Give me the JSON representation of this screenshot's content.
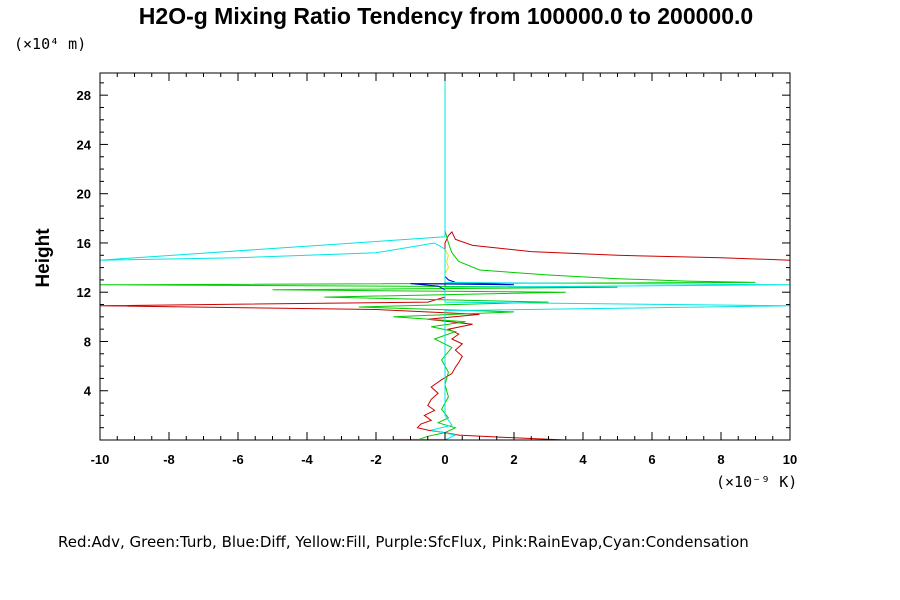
{
  "chart_data": {
    "type": "line",
    "title": "H2O-g Mixing Ratio Tendency from 100000.0 to 200000.0",
    "ylabel": "Height",
    "y_units": "(×10⁴ m)",
    "x_units": "(×10⁻⁹ K)",
    "xlim": [
      -10,
      10
    ],
    "ylim": [
      0,
      29.8
    ],
    "x_ticks": [
      "-10",
      "-8",
      "-6",
      "-4",
      "-2",
      "0",
      "2",
      "4",
      "6",
      "8",
      "10"
    ],
    "y_ticks": [
      "4",
      "8",
      "12",
      "16",
      "20",
      "24",
      "28"
    ],
    "legend_text": "Red:Adv, Green:Turb, Blue:Diff, Yellow:Fill, Purple:SfcFlux, Pink:RainEvap,Cyan:Condensation",
    "grid": false,
    "series": [
      {
        "name": "Adv",
        "color": "#cc0000",
        "points": [
          [
            3.5,
            0.0
          ],
          [
            1.8,
            0.2
          ],
          [
            0.4,
            0.4
          ],
          [
            0.0,
            0.6
          ],
          [
            -0.5,
            0.8
          ],
          [
            -0.8,
            1.0
          ],
          [
            -0.7,
            1.3
          ],
          [
            -0.4,
            1.6
          ],
          [
            -0.6,
            2.0
          ],
          [
            -0.3,
            2.4
          ],
          [
            -0.5,
            2.8
          ],
          [
            -0.4,
            3.3
          ],
          [
            -0.2,
            3.8
          ],
          [
            -0.4,
            4.3
          ],
          [
            -0.1,
            4.9
          ],
          [
            0.2,
            5.4
          ],
          [
            0.3,
            5.9
          ],
          [
            0.4,
            6.3
          ],
          [
            0.5,
            6.8
          ],
          [
            0.3,
            7.3
          ],
          [
            0.5,
            7.8
          ],
          [
            0.2,
            8.2
          ],
          [
            0.4,
            8.6
          ],
          [
            0.1,
            9.0
          ],
          [
            0.8,
            9.4
          ],
          [
            -0.5,
            9.8
          ],
          [
            1.0,
            10.2
          ],
          [
            -2.0,
            10.6
          ],
          [
            -10.0,
            10.9
          ],
          [
            -0.5,
            11.2
          ],
          [
            0.0,
            11.6
          ],
          [
            0.0,
            12.0
          ],
          [
            0.0,
            12.5
          ],
          [
            0.0,
            13.0
          ],
          [
            0.0,
            13.8
          ],
          [
            0.0,
            15.0
          ],
          [
            0.0,
            16.0
          ],
          [
            0.1,
            16.6
          ],
          [
            0.2,
            16.9
          ],
          [
            0.3,
            16.3
          ],
          [
            0.8,
            15.8
          ],
          [
            2.5,
            15.3
          ],
          [
            5.0,
            15.0
          ],
          [
            8.0,
            14.8
          ],
          [
            10.0,
            14.6
          ]
        ]
      },
      {
        "name": "Turb",
        "color": "#00cc00",
        "points": [
          [
            -0.8,
            0.0
          ],
          [
            -0.5,
            0.3
          ],
          [
            0.0,
            0.6
          ],
          [
            0.3,
            1.0
          ],
          [
            -0.2,
            1.4
          ],
          [
            0.1,
            1.8
          ],
          [
            -0.1,
            2.5
          ],
          [
            0.1,
            3.5
          ],
          [
            0.0,
            4.5
          ],
          [
            0.1,
            5.5
          ],
          [
            -0.1,
            6.5
          ],
          [
            0.2,
            7.5
          ],
          [
            -0.3,
            8.2
          ],
          [
            0.3,
            8.8
          ],
          [
            -0.4,
            9.2
          ],
          [
            0.6,
            9.6
          ],
          [
            -1.5,
            10.0
          ],
          [
            2.0,
            10.4
          ],
          [
            -2.5,
            10.8
          ],
          [
            3.0,
            11.2
          ],
          [
            -3.5,
            11.6
          ],
          [
            3.5,
            12.0
          ],
          [
            -5.0,
            12.2
          ],
          [
            5.0,
            12.4
          ],
          [
            -10.0,
            12.6
          ],
          [
            9.0,
            12.8
          ],
          [
            7.0,
            12.9
          ],
          [
            5.0,
            13.1
          ],
          [
            3.0,
            13.4
          ],
          [
            1.0,
            13.8
          ],
          [
            0.4,
            14.5
          ],
          [
            0.2,
            15.2
          ],
          [
            0.1,
            16.0
          ],
          [
            0.05,
            16.5
          ],
          [
            0.0,
            17.0
          ],
          [
            0.0,
            29.8
          ]
        ]
      },
      {
        "name": "Diff",
        "color": "#0000cc",
        "points": [
          [
            0.0,
            11.8
          ],
          [
            0.0,
            12.2
          ],
          [
            -0.2,
            12.5
          ],
          [
            -1.0,
            12.7
          ],
          [
            2.0,
            12.6
          ],
          [
            0.3,
            12.8
          ],
          [
            0.1,
            13.0
          ],
          [
            0.0,
            13.3
          ],
          [
            0.0,
            13.6
          ]
        ]
      },
      {
        "name": "Fill",
        "color": "#e6e600",
        "points": [
          [
            0.0,
            13.5
          ],
          [
            0.1,
            14.0
          ],
          [
            0.05,
            14.5
          ],
          [
            0.1,
            15.0
          ],
          [
            0.0,
            15.5
          ]
        ]
      },
      {
        "name": "SfcFlux",
        "color": "#cc00cc",
        "points": [
          [
            0.0,
            0.0
          ],
          [
            -3.5,
            0.0
          ]
        ]
      },
      {
        "name": "RainEvap",
        "color": "#ff88cc",
        "points": [
          [
            0.0,
            0.05
          ],
          [
            -1.5,
            0.05
          ]
        ]
      },
      {
        "name": "Condensation",
        "color": "#00e6e6",
        "points": [
          [
            0.0,
            0.0
          ],
          [
            0.3,
            0.4
          ],
          [
            -0.4,
            0.8
          ],
          [
            0.2,
            1.2
          ],
          [
            0.0,
            2.0
          ],
          [
            0.0,
            6.0
          ],
          [
            0.0,
            9.0
          ],
          [
            0.0,
            10.5
          ],
          [
            10.0,
            10.9
          ],
          [
            0.0,
            11.2
          ],
          [
            0.0,
            12.4
          ],
          [
            10.0,
            12.6
          ],
          [
            0.0,
            12.8
          ],
          [
            0.0,
            14.0
          ],
          [
            0.0,
            15.5
          ],
          [
            -0.3,
            16.0
          ],
          [
            -2.0,
            15.2
          ],
          [
            -6.0,
            14.8
          ],
          [
            -10.0,
            14.6
          ],
          [
            0.0,
            16.5
          ],
          [
            0.0,
            29.8
          ]
        ]
      }
    ]
  }
}
